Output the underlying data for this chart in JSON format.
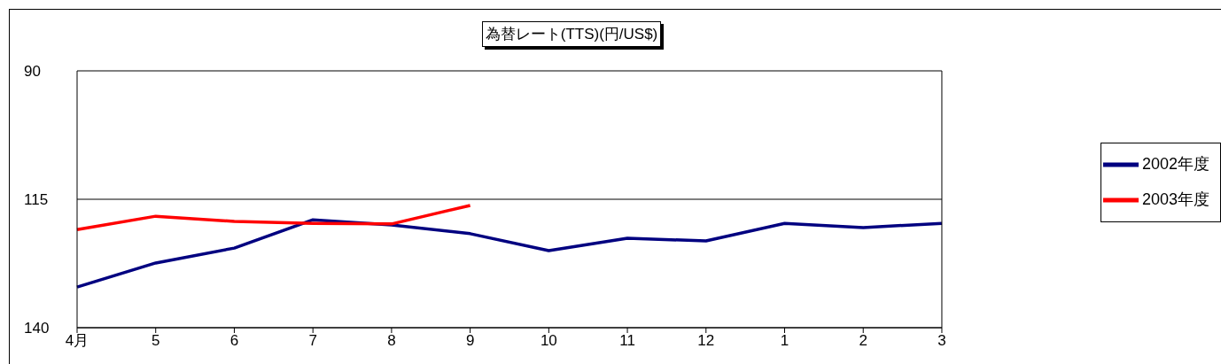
{
  "chart_data": {
    "type": "line",
    "title": "為替レート(TTS)(円/US$)",
    "categories": [
      "4月",
      "5",
      "6",
      "7",
      "8",
      "9",
      "10",
      "11",
      "12",
      "1",
      "2",
      "3"
    ],
    "series": [
      {
        "name": "2002年度",
        "color": "#000080",
        "values": [
          132.1,
          127.4,
          124.5,
          119.0,
          120.0,
          121.7,
          125.0,
          122.6,
          123.1,
          119.7,
          120.5,
          119.7
        ]
      },
      {
        "name": "2003年度",
        "color": "#ff0000",
        "values": [
          120.9,
          118.3,
          119.3,
          119.7,
          119.8,
          116.2,
          null,
          null,
          null,
          null,
          null,
          null
        ]
      }
    ],
    "ylim": [
      140,
      90
    ],
    "yticks": [
      90,
      115,
      140
    ],
    "grid": "y",
    "legend": "right",
    "marker": "none",
    "line_style": "solid"
  }
}
